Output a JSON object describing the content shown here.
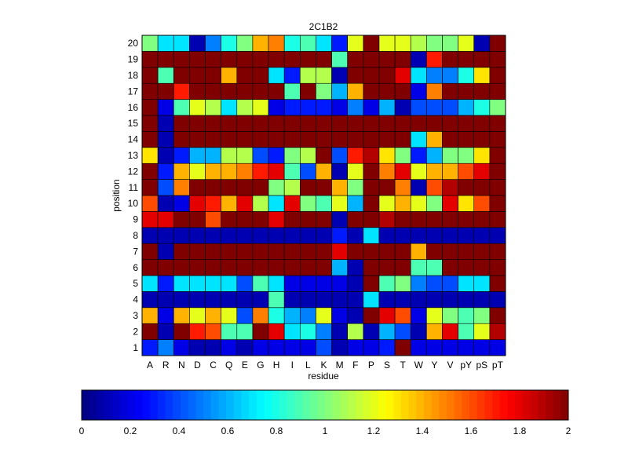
{
  "chart_data": {
    "type": "heatmap",
    "title": "2C1B2",
    "xlabel": "residue",
    "ylabel": "position",
    "x": [
      "A",
      "R",
      "N",
      "D",
      "C",
      "Q",
      "E",
      "G",
      "H",
      "I",
      "L",
      "K",
      "M",
      "F",
      "P",
      "S",
      "T",
      "W",
      "Y",
      "V",
      "pY",
      "pS",
      "pT"
    ],
    "y": [
      1,
      2,
      3,
      4,
      5,
      6,
      7,
      8,
      9,
      10,
      11,
      12,
      13,
      14,
      15,
      16,
      17,
      18,
      19,
      20
    ],
    "clim": [
      0,
      2
    ],
    "colormap": "jet",
    "colorbar": {
      "location": "bottom",
      "ticks": [
        0,
        0.2,
        0.4,
        0.6,
        0.8,
        1,
        1.2,
        1.4,
        1.6,
        1.8,
        2
      ],
      "tick_labels": [
        "0",
        "0.2",
        "0.4",
        "0.6",
        "0.8",
        "1",
        "1.2",
        "1.4",
        "1.6",
        "1.8",
        "2"
      ]
    },
    "z": [
      [
        0.3,
        0.5,
        0.2,
        0.1,
        0.1,
        0.2,
        0.1,
        0.2,
        0.2,
        0.2,
        0.2,
        0.4,
        0.1,
        0.2,
        0.2,
        0.3,
        2.0,
        0.2,
        0.2,
        0.2,
        0.2,
        0.2,
        0.2
      ],
      [
        2.0,
        0.1,
        2.0,
        1.7,
        1.6,
        0.9,
        0.9,
        2.0,
        1.8,
        0.7,
        0.8,
        0.5,
        0.1,
        1.1,
        0.1,
        0.6,
        0.4,
        0.1,
        1.4,
        1.8,
        0.9,
        1.2,
        1.9
      ],
      [
        1.4,
        0.2,
        1.4,
        1.2,
        1.4,
        1.2,
        0.4,
        1.5,
        0.8,
        0.6,
        0.5,
        1.2,
        0.2,
        0.1,
        2.0,
        1.8,
        1.6,
        0.2,
        1.2,
        1.0,
        0.9,
        1.0,
        2.0
      ],
      [
        0.1,
        0.1,
        0.1,
        0.1,
        0.1,
        0.1,
        0.1,
        0.1,
        0.9,
        0.1,
        0.1,
        0.1,
        0.1,
        0.1,
        0.7,
        0.1,
        0.1,
        0.1,
        0.1,
        0.1,
        0.1,
        0.1,
        0.1
      ],
      [
        0.7,
        0.3,
        0.7,
        0.7,
        0.7,
        0.7,
        0.4,
        0.9,
        0.7,
        0.2,
        0.2,
        0.2,
        0.2,
        0.1,
        2.0,
        0.9,
        1.0,
        0.5,
        0.4,
        0.4,
        0.7,
        0.7,
        2.0
      ],
      [
        2.0,
        2.0,
        2.0,
        2.0,
        2.0,
        2.0,
        2.0,
        2.0,
        2.0,
        2.0,
        2.0,
        2.0,
        0.6,
        0.1,
        2.0,
        2.0,
        2.0,
        0.9,
        0.9,
        2.0,
        2.0,
        2.0,
        2.0
      ],
      [
        2.0,
        0.1,
        2.0,
        2.0,
        2.0,
        2.0,
        2.0,
        2.0,
        2.0,
        2.0,
        2.0,
        2.0,
        1.8,
        2.0,
        2.0,
        2.0,
        2.0,
        1.4,
        2.0,
        2.0,
        2.0,
        2.0,
        2.0
      ],
      [
        0.1,
        0.1,
        0.1,
        0.1,
        0.1,
        0.1,
        0.1,
        0.1,
        0.1,
        0.1,
        0.1,
        0.1,
        0.3,
        0.1,
        0.7,
        0.1,
        0.1,
        0.1,
        0.1,
        0.1,
        0.1,
        0.1,
        0.1
      ],
      [
        1.8,
        1.8,
        2.0,
        2.0,
        1.6,
        2.0,
        2.0,
        2.0,
        1.8,
        2.0,
        2.0,
        2.0,
        0.1,
        2.0,
        2.0,
        1.9,
        2.0,
        2.0,
        2.0,
        2.0,
        2.0,
        2.0,
        2.0
      ],
      [
        1.6,
        0.1,
        0.2,
        1.8,
        1.7,
        1.4,
        1.8,
        1.1,
        0.7,
        1.8,
        1.0,
        0.9,
        1.2,
        0.6,
        2.0,
        1.2,
        1.4,
        1.2,
        1.0,
        1.8,
        1.3,
        1.6,
        2.0
      ],
      [
        2.0,
        0.4,
        1.5,
        2.0,
        2.0,
        2.0,
        2.0,
        2.0,
        1.0,
        1.1,
        2.0,
        2.0,
        1.4,
        1.0,
        2.0,
        2.0,
        1.5,
        0.1,
        1.6,
        1.9,
        2.0,
        2.0,
        2.0
      ],
      [
        2.0,
        0.3,
        1.4,
        1.2,
        1.4,
        1.4,
        1.5,
        1.7,
        1.8,
        0.9,
        0.4,
        1.4,
        0.1,
        1.2,
        2.0,
        1.5,
        1.8,
        1.2,
        1.4,
        1.4,
        1.6,
        1.8,
        2.0
      ],
      [
        1.3,
        0.1,
        0.3,
        0.6,
        0.6,
        1.1,
        1.1,
        0.4,
        0.3,
        1.0,
        1.1,
        2.0,
        0.4,
        1.7,
        1.9,
        1.3,
        1.0,
        0.3,
        0.6,
        1.0,
        1.0,
        1.3,
        2.0
      ],
      [
        2.0,
        0.1,
        2.0,
        2.0,
        2.0,
        2.0,
        2.0,
        2.0,
        2.0,
        2.0,
        2.0,
        2.0,
        2.0,
        2.0,
        2.0,
        2.0,
        2.0,
        0.7,
        1.4,
        2.0,
        2.0,
        2.0,
        2.0
      ],
      [
        2.0,
        0.1,
        2.0,
        2.0,
        2.0,
        2.0,
        2.0,
        2.0,
        2.0,
        2.0,
        2.0,
        2.0,
        2.0,
        2.0,
        2.0,
        2.0,
        2.0,
        2.0,
        2.0,
        2.0,
        2.0,
        2.0,
        2.0
      ],
      [
        2.0,
        0.2,
        0.9,
        1.2,
        1.1,
        0.7,
        1.1,
        1.2,
        0.2,
        0.3,
        0.3,
        0.3,
        0.2,
        0.5,
        0.2,
        0.6,
        0.1,
        0.4,
        0.4,
        0.4,
        0.6,
        0.8,
        1.0
      ],
      [
        2.0,
        2.0,
        1.7,
        2.0,
        2.0,
        2.0,
        2.0,
        2.0,
        2.0,
        0.9,
        2.0,
        1.0,
        0.6,
        1.4,
        2.0,
        2.0,
        2.0,
        0.2,
        1.5,
        2.0,
        2.0,
        2.0,
        2.0
      ],
      [
        2.0,
        0.9,
        2.0,
        2.0,
        2.0,
        1.4,
        2.0,
        2.0,
        0.7,
        0.3,
        1.1,
        1.1,
        0.1,
        2.0,
        2.0,
        2.0,
        1.8,
        0.7,
        0.5,
        0.5,
        0.8,
        1.3,
        2.0
      ],
      [
        2.0,
        2.0,
        2.0,
        2.0,
        2.0,
        2.0,
        2.0,
        2.0,
        2.0,
        2.0,
        2.0,
        2.0,
        0.9,
        2.0,
        2.0,
        2.0,
        2.0,
        0.1,
        1.7,
        2.0,
        2.0,
        2.0,
        2.0
      ],
      [
        1.0,
        0.7,
        0.7,
        0.1,
        0.5,
        0.8,
        1.0,
        1.4,
        1.5,
        0.8,
        0.9,
        0.7,
        0.3,
        1.2,
        2.0,
        1.2,
        1.2,
        1.1,
        1.0,
        1.0,
        1.2,
        0.1,
        2.0
      ]
    ]
  }
}
